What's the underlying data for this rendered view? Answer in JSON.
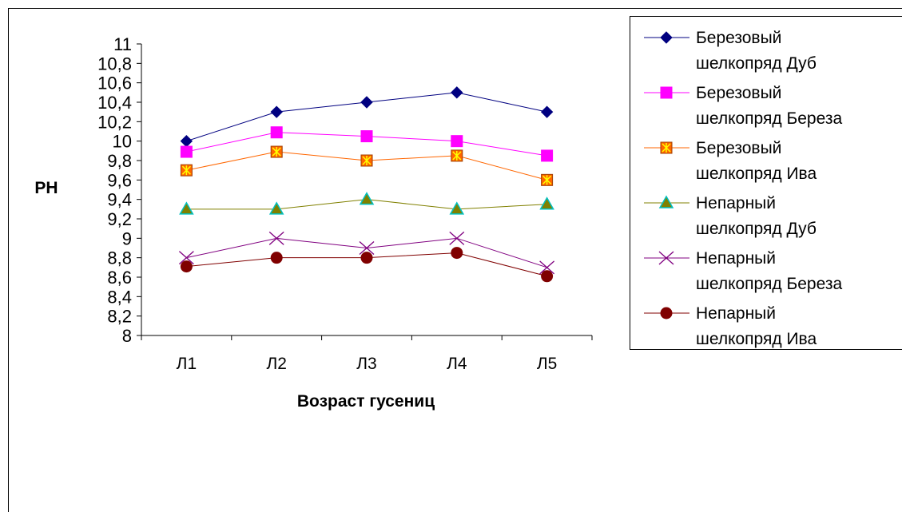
{
  "chart_data": {
    "type": "line",
    "title": "",
    "xlabel": "Возраст гусениц",
    "ylabel": "PH",
    "categories": [
      "Л1",
      "Л2",
      "Л3",
      "Л4",
      "Л5"
    ],
    "ylim": [
      8,
      11
    ],
    "ytick_step": 0.2,
    "yticks": [
      "8",
      "8,2",
      "8,4",
      "8,6",
      "8,8",
      "9",
      "9,2",
      "9,4",
      "9,6",
      "9,8",
      "10",
      "10,2",
      "10,4",
      "10,6",
      "10,8",
      "11"
    ],
    "grid": false,
    "legend_position": "right",
    "series": [
      {
        "name": "Березовый шелкопряд Дуб",
        "legend_lines": [
          "Березовый",
          "шелкопряд Дуб"
        ],
        "values": [
          10.0,
          10.3,
          10.4,
          10.5,
          10.3
        ],
        "color": "#000080",
        "marker": "diamond"
      },
      {
        "name": "Березовый шелкопряд Береза",
        "legend_lines": [
          "Березовый",
          "шелкопряд Береза"
        ],
        "values": [
          9.89,
          10.09,
          10.05,
          10.0,
          9.85
        ],
        "color": "#FF00FF",
        "marker": "square"
      },
      {
        "name": "Березовый шелкопряд Ива",
        "legend_lines": [
          "Березовый",
          "шелкопряд Ива"
        ],
        "values": [
          9.7,
          9.89,
          9.8,
          9.85,
          9.6
        ],
        "color": "#FF6600",
        "marker": "star-square"
      },
      {
        "name": "Непарный шелкопряд Дуб",
        "legend_lines": [
          "Непарный",
          "шелкопряд Дуб"
        ],
        "values": [
          9.3,
          9.3,
          9.4,
          9.3,
          9.35
        ],
        "color": "#808000",
        "marker": "triangle"
      },
      {
        "name": "Непарный шелкопряд Береза",
        "legend_lines": [
          "Непарный",
          "шелкопряд Береза"
        ],
        "values": [
          8.8,
          9.0,
          8.9,
          9.0,
          8.7
        ],
        "color": "#800080",
        "marker": "x"
      },
      {
        "name": "Непарный шелкопряд Ива",
        "legend_lines": [
          "Непарный",
          "шелкопряд Ива"
        ],
        "values": [
          8.71,
          8.8,
          8.8,
          8.85,
          8.61
        ],
        "color": "#800000",
        "marker": "circle"
      }
    ]
  }
}
